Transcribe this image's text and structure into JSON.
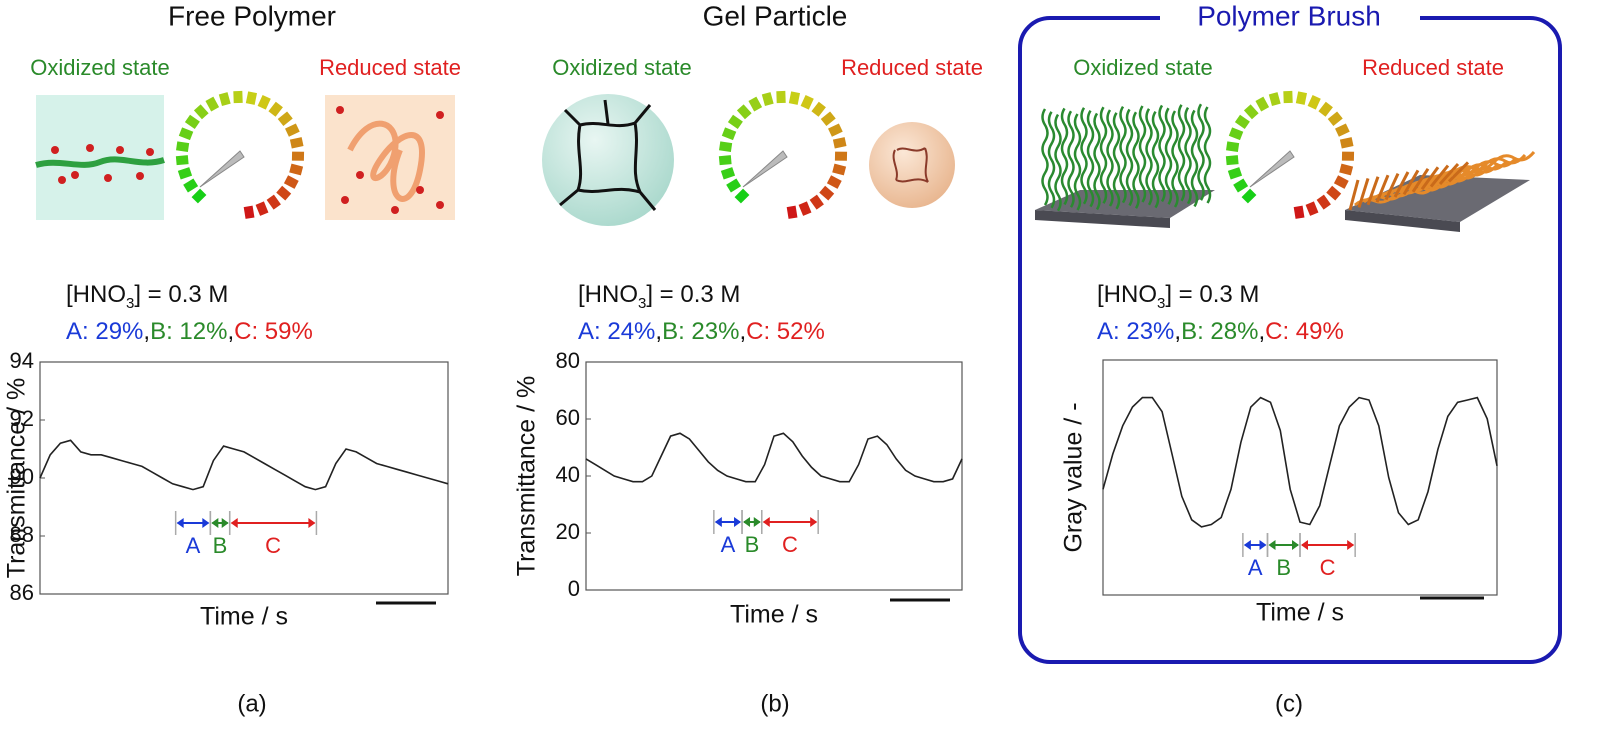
{
  "panels": [
    {
      "title": "Free Polymer",
      "oxidized": "Oxidized state",
      "reduced": "Reduced state",
      "condition": {
        "prefix": "[HNO",
        "subscript": "3",
        "suffix": "] = 0.3 M"
      },
      "ratios": [
        "A: 29%",
        "B: 12%",
        "C: 59%"
      ],
      "separator": ",",
      "label": "(a)"
    },
    {
      "title": "Gel Particle",
      "oxidized": "Oxidized state",
      "reduced": "Reduced state",
      "condition": {
        "prefix": "[HNO",
        "subscript": "3",
        "suffix": "] = 0.3 M"
      },
      "ratios": [
        "A: 24%",
        "B: 23%",
        "C: 52%"
      ],
      "separator": ",",
      "label": "(b)"
    },
    {
      "title": "Polymer Brush",
      "oxidized": "Oxidized state",
      "reduced": "Reduced state",
      "condition": {
        "prefix": "[HNO",
        "subscript": "3",
        "suffix": "] = 0.3 M"
      },
      "ratios": [
        "A: 23%",
        "B: 28%",
        "C: 49%"
      ],
      "separator": ",",
      "label": "(c)"
    }
  ],
  "chart_data": [
    {
      "type": "line",
      "x_label": "Time / s",
      "y_label": "Transmittance / %",
      "xlim": [
        0,
        40
      ],
      "ylim": [
        86,
        94
      ],
      "yticks": [
        86,
        88,
        90,
        92,
        94
      ],
      "x": [
        0,
        1,
        2,
        3,
        4,
        5,
        6,
        7,
        8,
        9,
        10,
        11,
        12,
        13,
        14,
        15,
        16,
        17,
        18,
        19,
        20,
        21,
        22,
        23,
        24,
        25,
        26,
        27,
        28,
        29,
        30,
        31,
        32,
        33,
        34,
        35,
        36,
        37,
        38,
        39,
        40
      ],
      "series": [
        {
          "color": "#222222",
          "values": [
            90.0,
            90.8,
            91.2,
            91.3,
            90.9,
            90.8,
            90.8,
            90.7,
            90.6,
            90.5,
            90.4,
            90.2,
            90.0,
            89.8,
            89.7,
            89.6,
            89.7,
            90.6,
            91.1,
            91.0,
            90.9,
            90.7,
            90.5,
            90.3,
            90.1,
            89.9,
            89.7,
            89.6,
            89.7,
            90.5,
            91.0,
            90.9,
            90.7,
            90.5,
            90.4,
            90.3,
            90.2,
            90.1,
            90.0,
            89.9,
            89.8
          ]
        }
      ],
      "annotations": [
        {
          "label": "A",
          "x": [
            13.3,
            16.7
          ],
          "color": "#1a3ad8"
        },
        {
          "label": "B",
          "x": [
            16.7,
            18.6
          ],
          "color": "#2a8a2a"
        },
        {
          "label": "C",
          "x": [
            18.6,
            27.1
          ],
          "color": "#e02020"
        }
      ]
    },
    {
      "type": "line",
      "x_label": "Time / s",
      "y_label": "Transmittance / %",
      "xlim": [
        0,
        40
      ],
      "ylim": [
        0,
        80
      ],
      "yticks": [
        0,
        20,
        40,
        60,
        80
      ],
      "x": [
        0,
        1,
        2,
        3,
        4,
        5,
        6,
        7,
        8,
        9,
        10,
        11,
        12,
        13,
        14,
        15,
        16,
        17,
        18,
        19,
        20,
        21,
        22,
        23,
        24,
        25,
        26,
        27,
        28,
        29,
        30,
        31,
        32,
        33,
        34,
        35,
        36,
        37,
        38,
        39,
        40
      ],
      "series": [
        {
          "color": "#222222",
          "values": [
            46,
            44,
            42,
            40,
            39,
            38,
            38,
            40,
            47,
            54,
            55,
            53,
            49,
            45,
            42,
            40,
            39,
            38,
            38,
            44,
            54,
            55,
            52,
            47,
            43,
            40,
            39,
            38,
            38,
            44,
            53,
            54,
            51,
            46,
            42,
            40,
            39,
            38,
            38,
            39,
            46
          ]
        }
      ],
      "annotations": [
        {
          "label": "A",
          "x": [
            13.6,
            16.6
          ],
          "color": "#1a3ad8"
        },
        {
          "label": "B",
          "x": [
            16.6,
            18.7
          ],
          "color": "#2a8a2a"
        },
        {
          "label": "C",
          "x": [
            18.7,
            24.7
          ],
          "color": "#e02020"
        }
      ]
    },
    {
      "type": "line",
      "x_label": "Time / s",
      "y_label": "Gray value / -",
      "xlim": [
        0,
        40
      ],
      "ylim": [
        0,
        1
      ],
      "x": [
        0,
        1,
        2,
        3,
        4,
        5,
        6,
        7,
        8,
        9,
        10,
        11,
        12,
        13,
        14,
        15,
        16,
        17,
        18,
        19,
        20,
        21,
        22,
        23,
        24,
        25,
        26,
        27,
        28,
        29,
        30,
        31,
        32,
        33,
        34,
        35,
        36,
        37,
        38,
        39,
        40
      ],
      "series": [
        {
          "color": "#222222",
          "values": [
            0.45,
            0.6,
            0.72,
            0.8,
            0.84,
            0.84,
            0.78,
            0.6,
            0.42,
            0.32,
            0.29,
            0.3,
            0.33,
            0.45,
            0.65,
            0.8,
            0.84,
            0.82,
            0.7,
            0.45,
            0.31,
            0.3,
            0.38,
            0.55,
            0.72,
            0.8,
            0.84,
            0.83,
            0.72,
            0.5,
            0.35,
            0.3,
            0.32,
            0.44,
            0.62,
            0.76,
            0.82,
            0.83,
            0.84,
            0.75,
            0.55
          ]
        }
      ],
      "annotations": [
        {
          "label": "A",
          "x": [
            14.2,
            16.7
          ],
          "color": "#1a3ad8"
        },
        {
          "label": "B",
          "x": [
            16.7,
            20.0
          ],
          "color": "#2a8a2a"
        },
        {
          "label": "C",
          "x": [
            20.0,
            25.6
          ],
          "color": "#e02020"
        }
      ]
    }
  ]
}
